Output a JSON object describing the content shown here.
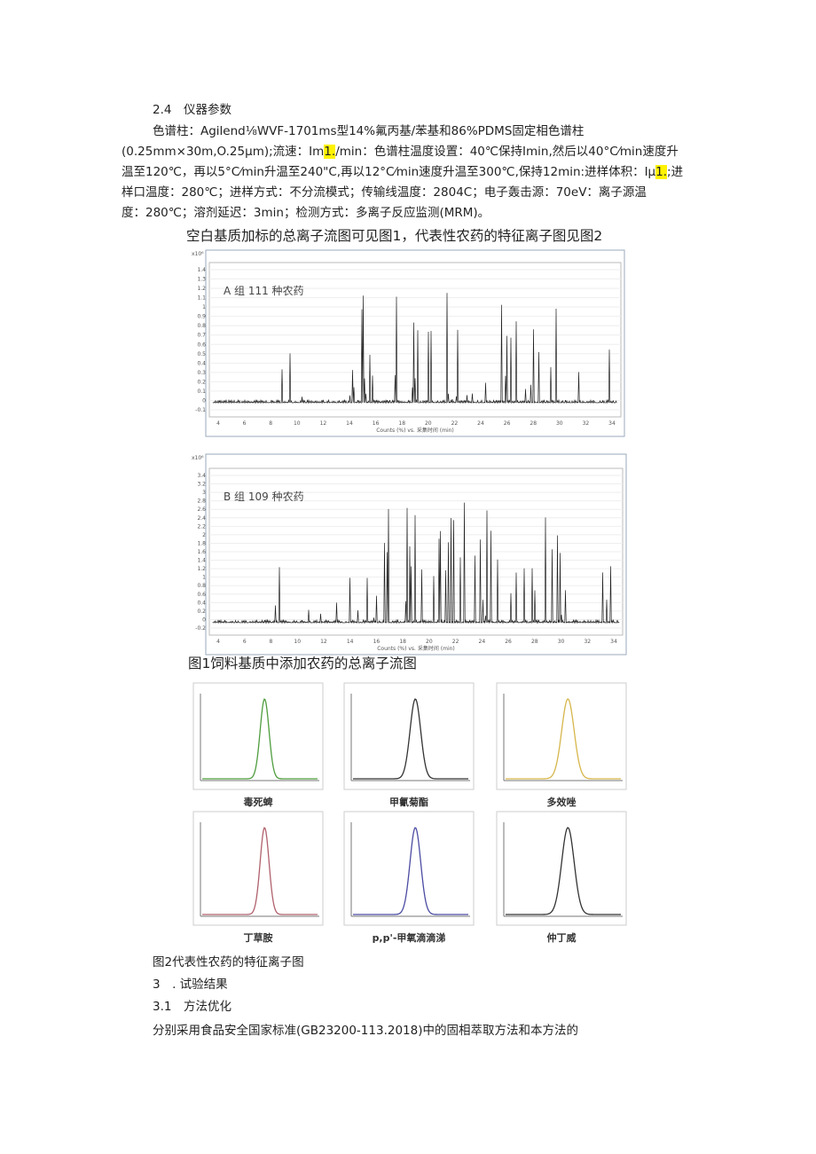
{
  "section": {
    "heading": "2.4　仪器参数",
    "lines": [
      [
        "色谱柱：Agilend⅛WVF-1701ms型14%氟丙基/苯基和86%PDMS固定相色谱柱"
      ],
      [
        "(0.25mm×30m,O.25μm);流速：Im",
        "1.",
        "/min：色谱柱温度设置：40℃保持Imin,然后以40°C⁄min速度升"
      ],
      [
        "温至120℃，再以5°C⁄min升温至240\"C,再以12°C⁄min速度升温至300℃,保持12min:进样体积：Iμ",
        "1.",
        ";进"
      ],
      [
        "样口温度：280℃；进样方式：不分流模式；传输线温度：2804C；电子轰击源：70eV：离子源温"
      ],
      [
        "度：280℃；溶剂延迟：3min；检测方式：多离子反应监测(MRM)。"
      ]
    ]
  },
  "intro": "空白基质加标的总离子流图可见图1，代表性农药的特征离子图见图2",
  "figure1": {
    "panels": [
      {
        "label": "A 组 111 种农药",
        "multiplier": "x10⁶",
        "axis_label": "Counts (%) vs. 采集时间 (min)",
        "yticks": [
          "1.4",
          "1.3",
          "1.2",
          "1.1",
          "1",
          "0.9",
          "0.8",
          "0.7",
          "0.6",
          "0.5",
          "0.4",
          "0.3",
          "0.2",
          "0.1",
          "0",
          "-0.1"
        ],
        "xticks": [
          "4",
          "6",
          "8",
          "10",
          "12",
          "14",
          "16",
          "18",
          "20",
          "22",
          "24",
          "26",
          "28",
          "30",
          "32",
          "34"
        ]
      },
      {
        "label": "B 组 109 种农药",
        "multiplier": "x10⁶",
        "axis_label": "Counts (%) vs. 采集时间 (min)",
        "yticks": [
          "3.4",
          "3.2",
          "3",
          "2.8",
          "2.6",
          "2.4",
          "2.2",
          "2",
          "1.8",
          "1.6",
          "1.4",
          "1.2",
          "1",
          "0.8",
          "0.6",
          "0.4",
          "0.2",
          "0",
          "-0.2"
        ],
        "xticks": [
          "4",
          "6",
          "8",
          "10",
          "12",
          "14",
          "16",
          "18",
          "20",
          "22",
          "24",
          "26",
          "28",
          "30",
          "32",
          "34"
        ]
      }
    ],
    "caption": "图1饲料基质中添加农药的总离子流图"
  },
  "figure2": {
    "names": [
      "毒死蜱",
      "甲氰菊酯",
      "多效唑",
      "丁草胺",
      "p,p'-甲氧滴滴涕",
      "仲丁威"
    ],
    "caption": "图2代表性农药的特征离子图"
  },
  "results": {
    "heading": "3　. 试验结果",
    "subheading": "3.1　方法优化",
    "text": "分别采用食品安全国家标准(GB23200-113.2018)中的固相萃取方法和本方法的"
  }
}
